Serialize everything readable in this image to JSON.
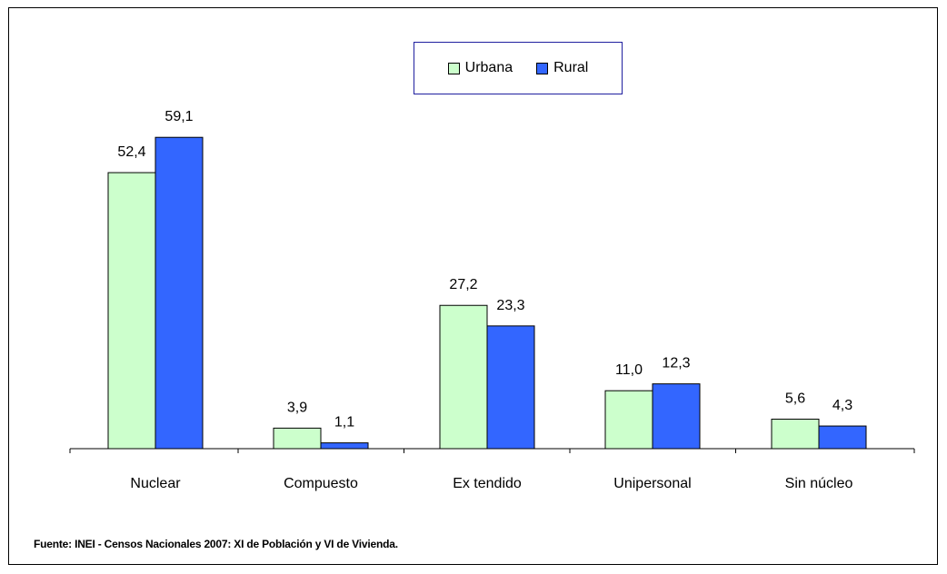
{
  "chart_data": {
    "type": "bar",
    "categories": [
      "Nuclear",
      "Compuesto",
      "Ex tendido",
      "Unipersonal",
      "Sin núcleo"
    ],
    "series": [
      {
        "name": "Urbana",
        "values": [
          52.4,
          3.9,
          27.2,
          11.0,
          5.6
        ],
        "labels": [
          "52,4",
          "3,9",
          "27,2",
          "11,0",
          "5,6"
        ],
        "color": "#ccffcc"
      },
      {
        "name": "Rural",
        "values": [
          59.1,
          1.1,
          23.3,
          12.3,
          4.3
        ],
        "labels": [
          "59,1",
          "1,1",
          "23,3",
          "12,3",
          "4,3"
        ],
        "color": "#3366ff"
      }
    ],
    "title": "",
    "xlabel": "",
    "ylabel": "",
    "ylim": [
      0,
      70
    ],
    "grid": false,
    "legend_position": "top-center"
  },
  "legend": {
    "urbana": "Urbana",
    "rural": "Rural"
  },
  "source_note": "Fuente: INEI - Censos Nacionales 2007: XI de Población y VI de Vivienda."
}
